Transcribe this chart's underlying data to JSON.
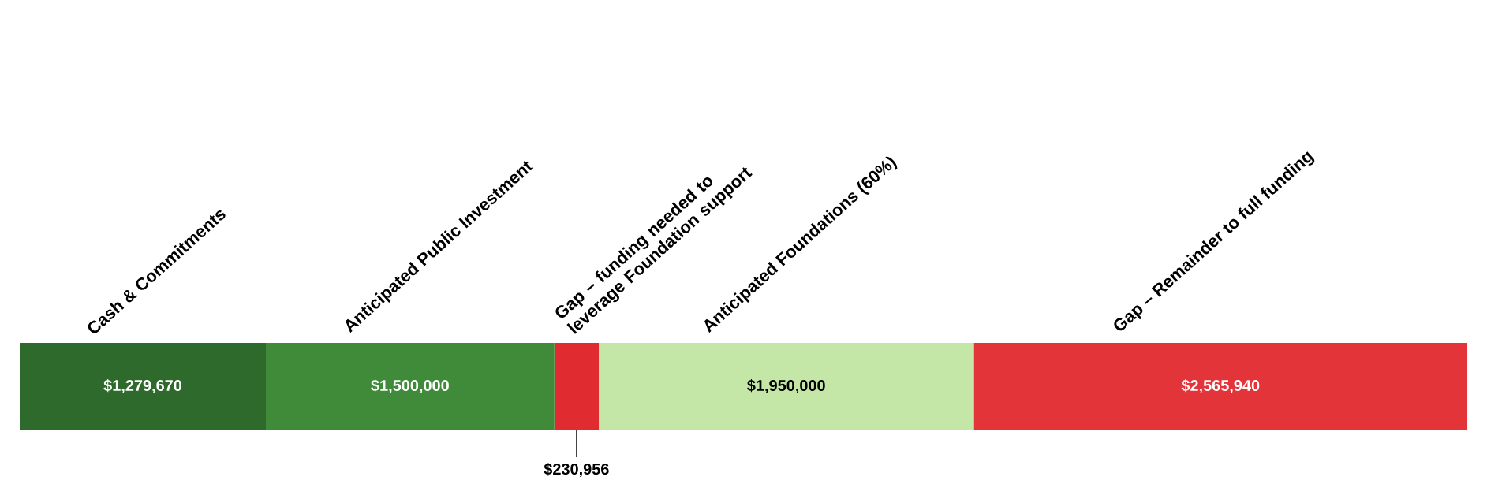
{
  "chart_data": {
    "type": "bar",
    "orientation": "horizontal",
    "stacked": true,
    "categories": [
      null
    ],
    "series": [
      {
        "name": "Cash & Commitments",
        "color": "#2d6a2b",
        "values": [
          1279670
        ],
        "value_labels": [
          "$1,279,670"
        ]
      },
      {
        "name": "Anticipated Public Investment",
        "color": "#3f8b3a",
        "values": [
          1500000
        ],
        "value_labels": [
          "$1,500,000"
        ]
      },
      {
        "name": "Gap – funding needed to leverage Foundation support",
        "color": "#e02b30",
        "values": [
          230956
        ],
        "value_labels": [
          "$230,956"
        ]
      },
      {
        "name": "Anticipated Foundations (60%)",
        "color": "#c4e6a6",
        "values": [
          1950000
        ],
        "value_labels": [
          "$1,950,000"
        ]
      },
      {
        "name": "Gap – Remainder to full funding",
        "color": "#e3343a",
        "values": [
          2565940
        ],
        "value_labels": [
          "$2,565,940"
        ]
      }
    ]
  }
}
